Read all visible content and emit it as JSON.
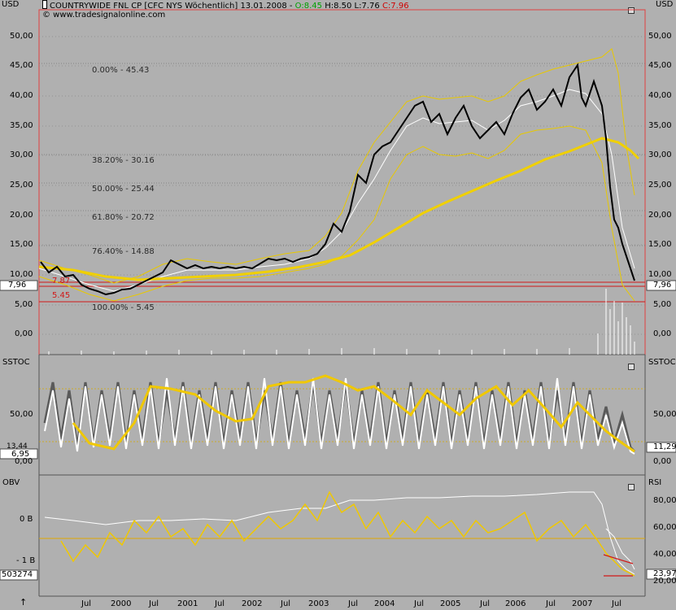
{
  "window": {
    "currency_left": "USD",
    "currency_right": "USD",
    "title_prefix": "COUNTRYWIDE FNL CP [CFC NYS  Wöchentlich] 13.01.2008 - ",
    "open": "O:8.45",
    "high": "H:8.50",
    "low": "L:7.76",
    "close": "C:7.96",
    "copyright": "© www.tradesignalonline.com"
  },
  "colors": {
    "background": "#b0b0b0",
    "price": "#000000",
    "bollinger": "#e8c800",
    "ma": "#f0d000",
    "white_line": "#ffffff",
    "level_lines": "#d01818",
    "open_green": "#00a000",
    "close_red": "#d00000"
  },
  "price_panel": {
    "left_ticks": [
      "50,00",
      "45,00",
      "40,00",
      "35,00",
      "30,00",
      "25,00",
      "20,00",
      "15,00",
      "10,00",
      "5,00",
      "0,00"
    ],
    "right_ticks": [
      "50,00",
      "45,00",
      "40,00",
      "35,00",
      "30,00",
      "25,00",
      "20,00",
      "15,00",
      "10,00",
      "5,00",
      "0,00"
    ],
    "current_price_label": "7,96",
    "fib_levels": [
      {
        "label": "0.00% - 45.43",
        "value": 45.43
      },
      {
        "label": "38.20% - 30.16",
        "value": 30.16
      },
      {
        "label": "50.00% - 25.44",
        "value": 25.44
      },
      {
        "label": "61.80% - 20.72",
        "value": 20.72
      },
      {
        "label": "76.40% - 14.88",
        "value": 14.88
      },
      {
        "label": "100.00% - 5.45",
        "value": 5.45
      }
    ],
    "red_level_labels": [
      "7.87",
      "5.45"
    ]
  },
  "sstoc_panel": {
    "label_left": "SSTOC",
    "label_right": "SSTOC",
    "left_ticks": [
      "50,00",
      "0,00"
    ],
    "right_ticks": [
      "50,00",
      "0,00"
    ],
    "value_left_a": "13,44",
    "value_left_b": "6,95",
    "value_right": "11,29"
  },
  "obv_panel": {
    "label_left": "OBV",
    "label_right": "RSI",
    "left_ticks": [
      "0 B",
      "- 1 B"
    ],
    "right_ticks": [
      "80,00",
      "60,00",
      "40,00",
      "20,00"
    ],
    "obv_value": "503274",
    "rsi_value": "23,97"
  },
  "time_axis": {
    "labels": [
      "Jul",
      "2000",
      "Jul",
      "2001",
      "Jul",
      "2002",
      "Jul",
      "2003",
      "Jul",
      "2004",
      "Jul",
      "2005",
      "Jul",
      "2006",
      "Jul",
      "2007",
      "Jul"
    ]
  },
  "icons": {
    "chart_icon": "candlestick-icon",
    "panel_box": "window-box-icon",
    "axis_arrow": "up-arrow-icon"
  }
}
